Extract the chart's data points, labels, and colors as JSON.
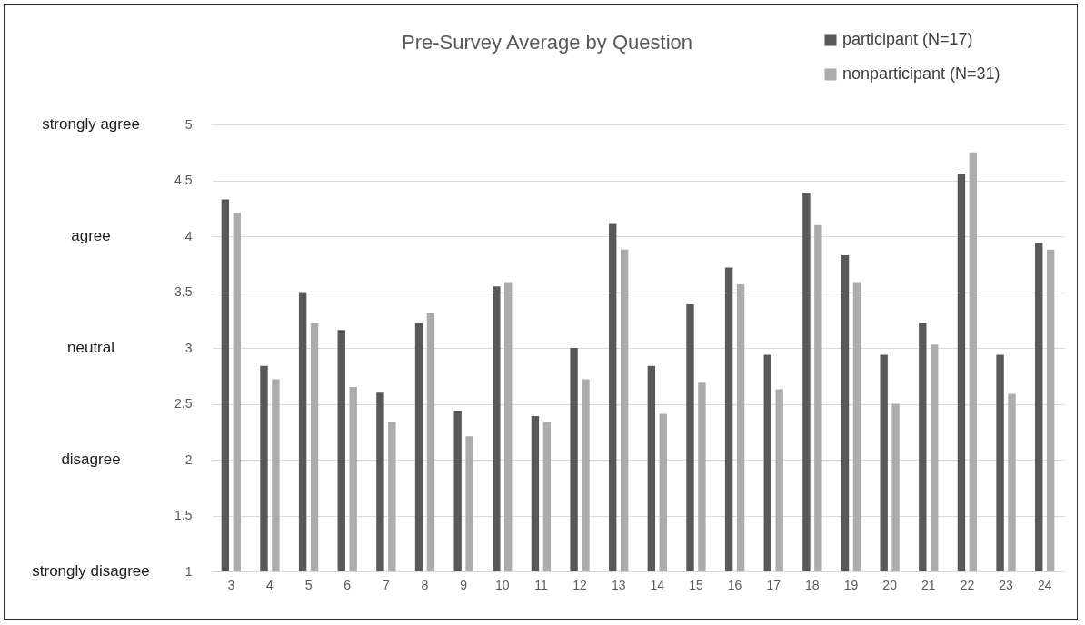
{
  "chart_data": {
    "type": "bar",
    "title": "Pre-Survey Average by Question",
    "categories": [
      "3",
      "4",
      "5",
      "6",
      "7",
      "8",
      "9",
      "10",
      "11",
      "12",
      "13",
      "14",
      "15",
      "16",
      "17",
      "18",
      "19",
      "20",
      "21",
      "22",
      "23",
      "24"
    ],
    "series": [
      {
        "name": "participant (N=17)",
        "color": "#595959",
        "values": [
          4.33,
          2.84,
          3.5,
          3.16,
          2.6,
          3.22,
          2.44,
          3.55,
          2.39,
          3.0,
          4.11,
          2.84,
          3.39,
          3.72,
          2.94,
          4.39,
          3.83,
          2.94,
          3.22,
          4.56,
          2.94,
          3.94
        ]
      },
      {
        "name": "nonparticipant (N=31)",
        "color": "#acacac",
        "values": [
          4.21,
          2.72,
          3.22,
          2.65,
          2.34,
          3.31,
          2.21,
          3.59,
          2.34,
          2.72,
          3.88,
          2.41,
          2.69,
          3.57,
          2.63,
          4.1,
          3.59,
          2.5,
          3.03,
          4.75,
          2.59,
          3.88
        ]
      }
    ],
    "ylim": [
      1,
      5
    ],
    "yticks": [
      1,
      1.5,
      2,
      2.5,
      3,
      3.5,
      4,
      4.5,
      5
    ],
    "annotations": [
      "strongly disagree",
      "disagree",
      "neutral",
      "agree",
      "strongly agree"
    ],
    "grid": "y",
    "legend": "top right"
  }
}
